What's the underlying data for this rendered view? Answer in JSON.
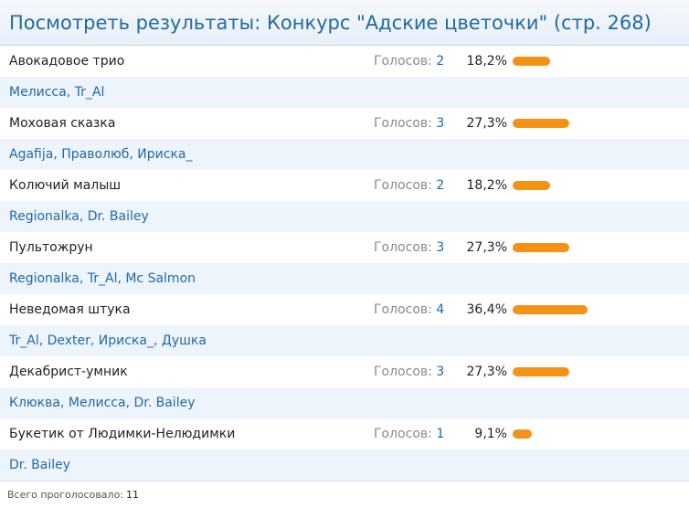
{
  "header": {
    "title": "Посмотреть результаты: Конкурс \"Адские цветочки\" (стр. 268)"
  },
  "votes_label": "Голосов:",
  "options": [
    {
      "name": "Авокадовое трио",
      "votes": "2",
      "percent_text": "18,2%",
      "percent": 18.2,
      "voters": "Мелисса, Tr_Al"
    },
    {
      "name": "Моховая сказка",
      "votes": "3",
      "percent_text": "27,3%",
      "percent": 27.3,
      "voters": "Agafija, Праволюб, Ириска_"
    },
    {
      "name": "Колючий малыш",
      "votes": "2",
      "percent_text": "18,2%",
      "percent": 18.2,
      "voters": "Regionalka, Dr. Bailey"
    },
    {
      "name": "Пультожрун",
      "votes": "3",
      "percent_text": "27,3%",
      "percent": 27.3,
      "voters": "Regionalka, Tr_Al, Mc Salmon"
    },
    {
      "name": "Неведомая штука",
      "votes": "4",
      "percent_text": "36,4%",
      "percent": 36.4,
      "voters": "Tr_Al, Dexter, Ириска_, Душка"
    },
    {
      "name": "Декабрист-умник",
      "votes": "3",
      "percent_text": "27,3%",
      "percent": 27.3,
      "voters": "Клюква, Мелисса, Dr. Bailey"
    },
    {
      "name": "Букетик от Людимки-Нелюдимки",
      "votes": "1",
      "percent_text": "9,1%",
      "percent": 9.1,
      "voters": "Dr. Bailey"
    }
  ],
  "footer": {
    "total_label": "Всего проголосовало:",
    "total": "11"
  },
  "colors": {
    "accent": "#1f6aa5",
    "bar": "#f39214",
    "stripe": "#eef4fb"
  }
}
